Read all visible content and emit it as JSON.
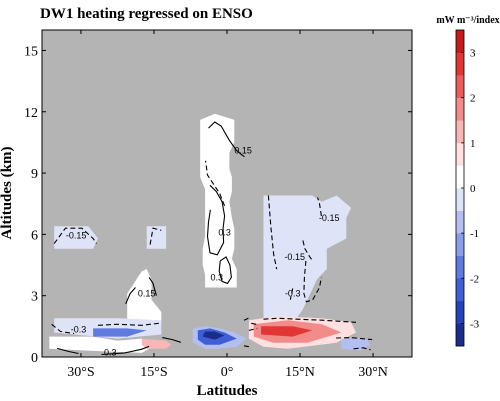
{
  "chart_data": {
    "type": "heatmap",
    "title": "DW1 heating regressed on ENSO",
    "xlabel": "Latitudes",
    "ylabel": "Altitudes (km)",
    "xlim": [
      -38,
      38
    ],
    "ylim": [
      0,
      16
    ],
    "x_ticks": [
      {
        "value": -30,
        "label": "30°S"
      },
      {
        "value": -15,
        "label": "15°S"
      },
      {
        "value": 0,
        "label": "0°"
      },
      {
        "value": 15,
        "label": "15°N"
      },
      {
        "value": 30,
        "label": "30°N"
      }
    ],
    "y_ticks": [
      {
        "value": 0,
        "label": "0"
      },
      {
        "value": 3,
        "label": "3"
      },
      {
        "value": 6,
        "label": "6"
      },
      {
        "value": 9,
        "label": "9"
      },
      {
        "value": 12,
        "label": "12"
      },
      {
        "value": 15,
        "label": "15"
      }
    ],
    "missing_value_color": "#b4b4b4",
    "colorbar": {
      "label": "mW m⁻³/index",
      "levels": [
        -3.5,
        -3,
        -2.5,
        -2,
        -1.5,
        -1,
        -0.5,
        0,
        0.5,
        1,
        1.5,
        2,
        2.5,
        3,
        3.5
      ],
      "colors": [
        "#1a2c8c",
        "#2443b8",
        "#3f5fd4",
        "#5f7be0",
        "#8a9de9",
        "#b3bff1",
        "#dfe3f8",
        "#ffffff",
        "#fde0df",
        "#f8b7b6",
        "#f28c8a",
        "#ec5e5c",
        "#e23634",
        "#c71a1c"
      ],
      "tick_labels": [
        {
          "value": 3,
          "label": "3"
        },
        {
          "value": 2,
          "label": "2"
        },
        {
          "value": 1,
          "label": "1"
        },
        {
          "value": 0,
          "label": "0"
        },
        {
          "value": -1,
          "label": "-1"
        },
        {
          "value": -2,
          "label": "-2"
        },
        {
          "value": -3,
          "label": "-3"
        }
      ]
    },
    "regions": [
      {
        "level": 0.25,
        "points": [
          [
            -4.5,
            3.4
          ],
          [
            -4.5,
            4.0
          ],
          [
            -5.0,
            4.5
          ],
          [
            -5.0,
            5.3
          ],
          [
            -4.5,
            5.9
          ],
          [
            -4.5,
            8.2
          ],
          [
            -5.5,
            8.8
          ],
          [
            -5.5,
            11.6
          ],
          [
            -2.5,
            11.9
          ],
          [
            1.5,
            11.6
          ],
          [
            1.5,
            10.5
          ],
          [
            0.5,
            10.0
          ],
          [
            0.5,
            9.2
          ],
          [
            1.0,
            8.8
          ],
          [
            1.0,
            8.1
          ],
          [
            0.5,
            7.6
          ],
          [
            1.0,
            6.8
          ],
          [
            1.5,
            6.3
          ],
          [
            1.5,
            5.3
          ],
          [
            1.0,
            4.8
          ],
          [
            2.0,
            4.3
          ],
          [
            2.0,
            3.4
          ]
        ]
      },
      {
        "level": -0.25,
        "points": [
          [
            7.5,
            0.8
          ],
          [
            7.5,
            7.9
          ],
          [
            17.5,
            7.9
          ],
          [
            19.5,
            7.6
          ],
          [
            22.5,
            7.9
          ],
          [
            25.5,
            7.3
          ],
          [
            24.5,
            6.8
          ],
          [
            24.5,
            5.8
          ],
          [
            20.5,
            5.3
          ],
          [
            20.5,
            4.3
          ],
          [
            18.5,
            3.8
          ],
          [
            17.5,
            3.3
          ],
          [
            15.5,
            2.3
          ],
          [
            12.5,
            1.3
          ],
          [
            9.5,
            1.0
          ]
        ]
      },
      {
        "level": -0.25,
        "points": [
          [
            -35.5,
            5.3
          ],
          [
            -35.5,
            6.4
          ],
          [
            -28.5,
            6.4
          ],
          [
            -26.5,
            5.8
          ],
          [
            -27.5,
            5.3
          ]
        ]
      },
      {
        "level": -0.25,
        "points": [
          [
            -16.5,
            5.3
          ],
          [
            -16.5,
            6.4
          ],
          [
            -12.5,
            6.4
          ],
          [
            -12.5,
            5.3
          ]
        ]
      },
      {
        "level": 0.25,
        "points": [
          [
            -20.5,
            1.6
          ],
          [
            -20.5,
            3.1
          ],
          [
            -17.5,
            4.2
          ],
          [
            -16.5,
            4.3
          ],
          [
            -15.5,
            3.8
          ],
          [
            -15.5,
            2.8
          ],
          [
            -13.5,
            2.2
          ],
          [
            -13.5,
            1.6
          ]
        ]
      },
      {
        "level": -0.25,
        "points": [
          [
            -35.5,
            1.2
          ],
          [
            -35.5,
            1.9
          ],
          [
            -22.5,
            1.9
          ],
          [
            -13.5,
            1.8
          ],
          [
            -13.5,
            1.1
          ],
          [
            -22.5,
            0.9
          ]
        ]
      },
      {
        "level": 0.25,
        "points": [
          [
            -36.5,
            0.4
          ],
          [
            -36.5,
            1.0
          ],
          [
            -27.5,
            1.0
          ],
          [
            -22.5,
            0.8
          ],
          [
            -17.5,
            0.9
          ],
          [
            -14.5,
            0.6
          ],
          [
            -17.5,
            0.2
          ],
          [
            -27.5,
            0.3
          ]
        ]
      },
      {
        "level": 1.25,
        "points": [
          [
            -17.5,
            0.6
          ],
          [
            -17.5,
            0.9
          ],
          [
            -12.5,
            0.8
          ],
          [
            -11.5,
            0.6
          ],
          [
            -12.5,
            0.4
          ],
          [
            -16.5,
            0.4
          ]
        ]
      },
      {
        "level": -1.75,
        "points": [
          [
            -27.5,
            1.0
          ],
          [
            -27.5,
            1.4
          ],
          [
            -20.5,
            1.4
          ],
          [
            -16.5,
            1.3
          ],
          [
            -20.5,
            1.0
          ]
        ]
      },
      {
        "level": -0.75,
        "points": [
          [
            -7.0,
            0.7
          ],
          [
            -7.0,
            1.4
          ],
          [
            -4.5,
            1.5
          ],
          [
            -1.5,
            1.4
          ],
          [
            1.5,
            1.2
          ],
          [
            4.0,
            0.9
          ],
          [
            2.0,
            0.5
          ],
          [
            -1.5,
            0.4
          ],
          [
            -4.5,
            0.4
          ]
        ]
      },
      {
        "level": -2.25,
        "points": [
          [
            -6.0,
            0.85
          ],
          [
            -6.0,
            1.3
          ],
          [
            -3.5,
            1.4
          ],
          [
            -0.5,
            1.2
          ],
          [
            2.0,
            0.9
          ],
          [
            -1.5,
            0.6
          ],
          [
            -4.5,
            0.6
          ]
        ]
      },
      {
        "level": -3.25,
        "points": [
          [
            -5.0,
            1.0
          ],
          [
            -4.5,
            1.25
          ],
          [
            -2.5,
            1.25
          ],
          [
            -0.5,
            1.05
          ],
          [
            -2.5,
            0.85
          ]
        ]
      },
      {
        "level": 0.75,
        "points": [
          [
            4.5,
            0.9
          ],
          [
            4.5,
            1.8
          ],
          [
            10.5,
            2.0
          ],
          [
            19.5,
            1.9
          ],
          [
            25.5,
            1.7
          ],
          [
            26.5,
            1.2
          ],
          [
            22.5,
            0.7
          ],
          [
            12.5,
            0.4
          ],
          [
            7.5,
            0.5
          ]
        ]
      },
      {
        "level": 1.75,
        "points": [
          [
            5.5,
            1.0
          ],
          [
            5.5,
            1.6
          ],
          [
            12.5,
            1.8
          ],
          [
            19.5,
            1.6
          ],
          [
            23.5,
            1.2
          ],
          [
            16.5,
            0.7
          ],
          [
            9.5,
            0.7
          ]
        ]
      },
      {
        "level": 2.75,
        "points": [
          [
            7.0,
            1.1
          ],
          [
            7.0,
            1.5
          ],
          [
            13.5,
            1.5
          ],
          [
            17.5,
            1.3
          ],
          [
            13.5,
            1.0
          ]
        ]
      },
      {
        "level": -0.75,
        "points": [
          [
            23.5,
            0.4
          ],
          [
            23.5,
            0.9
          ],
          [
            28.5,
            0.9
          ],
          [
            29.5,
            0.6
          ],
          [
            27.5,
            0.3
          ]
        ]
      }
    ],
    "contours": [
      {
        "dashed": false,
        "points": [
          [
            -3.8,
            11.2
          ],
          [
            -2.5,
            11.5
          ],
          [
            -1.2,
            11.3
          ],
          [
            0.5,
            10.6
          ],
          [
            2.0,
            10.1
          ],
          [
            3.0,
            9.9
          ],
          [
            3.6,
            9.8
          ]
        ]
      },
      {
        "dashed": false,
        "points": [
          [
            -3.5,
            8.4
          ],
          [
            -2.2,
            8.1
          ],
          [
            -1.0,
            7.6
          ],
          [
            -0.5,
            6.9
          ],
          [
            -0.8,
            6.3
          ],
          [
            -0.7,
            5.6
          ],
          [
            -2.0,
            5.0
          ],
          [
            -3.5,
            5.1
          ],
          [
            -4.0,
            5.9
          ],
          [
            -3.8,
            6.6
          ],
          [
            -3.4,
            7.2
          ]
        ]
      },
      {
        "dashed": false,
        "points": [
          [
            -1.4,
            4.7
          ],
          [
            -0.2,
            4.9
          ],
          [
            0.6,
            4.5
          ],
          [
            0.9,
            3.9
          ],
          [
            0.1,
            3.6
          ],
          [
            -1.0,
            3.7
          ],
          [
            -1.6,
            4.2
          ],
          [
            -1.4,
            4.7
          ]
        ]
      },
      {
        "dashed": false,
        "points": [
          [
            -20.8,
            2.6
          ],
          [
            -19.9,
            3.1
          ],
          [
            -18.8,
            3.4
          ]
        ]
      },
      {
        "dashed": false,
        "points": [
          [
            -14.5,
            3.0
          ],
          [
            -15.2,
            3.6
          ],
          [
            -16.0,
            3.9
          ]
        ]
      },
      {
        "dashed": false,
        "points": [
          [
            -34.9,
            0.42
          ],
          [
            -32.5,
            0.27
          ],
          [
            -30.5,
            0.17
          ]
        ]
      },
      {
        "dashed": false,
        "points": [
          [
            -25.8,
            0.12
          ],
          [
            -21.0,
            0.2
          ],
          [
            -17.5,
            0.38
          ],
          [
            -16.0,
            0.52
          ]
        ]
      },
      {
        "dashed": false,
        "points": [
          [
            -13.3,
            0.95
          ],
          [
            -11.2,
            0.85
          ],
          [
            -9.5,
            0.72
          ]
        ]
      },
      {
        "dashed": true,
        "points": [
          [
            -0.5,
            7.4
          ],
          [
            -1.5,
            8.0
          ],
          [
            -4.0,
            8.9
          ],
          [
            -4.4,
            9.6
          ]
        ]
      },
      {
        "dashed": true,
        "points": [
          [
            -35.5,
            5.55
          ],
          [
            -33.2,
            6.3
          ],
          [
            -29.8,
            6.3
          ],
          [
            -27.5,
            5.8
          ],
          [
            -26.8,
            5.55
          ]
        ]
      },
      {
        "dashed": true,
        "points": [
          [
            -15.8,
            5.5
          ],
          [
            -15.2,
            6.3
          ],
          [
            -13.5,
            6.2
          ]
        ]
      },
      {
        "dashed": true,
        "points": [
          [
            8.5,
            7.9
          ],
          [
            9.0,
            6.4
          ],
          [
            9.6,
            5.0
          ],
          [
            10.2,
            4.3
          ]
        ]
      },
      {
        "dashed": true,
        "points": [
          [
            19.4,
            6.9
          ],
          [
            19.0,
            7.5
          ],
          [
            18.6,
            7.8
          ]
        ]
      },
      {
        "dashed": true,
        "points": [
          [
            15.6,
            5.7
          ],
          [
            16.0,
            5.3
          ],
          [
            17.0,
            4.9
          ],
          [
            17.6,
            4.7
          ]
        ]
      },
      {
        "dashed": true,
        "points": [
          [
            16.2,
            4.7
          ],
          [
            15.9,
            3.9
          ],
          [
            15.8,
            3.1
          ],
          [
            16.3,
            2.7
          ],
          [
            17.6,
            2.8
          ],
          [
            19.0,
            3.4
          ],
          [
            19.4,
            3.9
          ]
        ]
      },
      {
        "dashed": true,
        "points": [
          [
            13.5,
            3.35
          ],
          [
            13.0,
            2.8
          ]
        ]
      },
      {
        "dashed": true,
        "points": [
          [
            -36.0,
            1.6
          ],
          [
            -34.2,
            1.25
          ],
          [
            -31.4,
            1.15
          ]
        ]
      },
      {
        "dashed": true,
        "points": [
          [
            -26.5,
            1.55
          ],
          [
            -22.5,
            1.6
          ],
          [
            -17.5,
            1.55
          ],
          [
            -14.0,
            1.65
          ]
        ]
      },
      {
        "dashed": true,
        "points": [
          [
            3.5,
            0.55
          ],
          [
            4.6,
            0.5
          ]
        ]
      },
      {
        "dashed": true,
        "points": [
          [
            3.5,
            1.8
          ],
          [
            4.4,
            1.9
          ]
        ]
      },
      {
        "dashed": true,
        "points": [
          [
            4.5,
            1.3
          ],
          [
            6.2,
            1.4
          ]
        ]
      },
      {
        "dashed": true,
        "points": [
          [
            7.5,
            1.85
          ],
          [
            10.5,
            1.9
          ],
          [
            14.5,
            1.85
          ],
          [
            19.5,
            1.8
          ],
          [
            26.5,
            1.7
          ]
        ]
      },
      {
        "dashed": true,
        "points": [
          [
            26.0,
            0.4
          ],
          [
            28.0,
            0.45
          ],
          [
            29.5,
            0.35
          ]
        ]
      },
      {
        "dashed": true,
        "points": [
          [
            22.4,
            0.93
          ],
          [
            25.6,
            0.95
          ],
          [
            29.8,
            0.85
          ]
        ]
      },
      {
        "dashed": true,
        "points": [
          [
            6.0,
            1.6
          ],
          [
            5.0,
            1.65
          ]
        ]
      }
    ],
    "contour_labels": [
      {
        "x": 3.3,
        "y": 10.1,
        "text": "0.15"
      },
      {
        "x": -0.5,
        "y": 6.1,
        "text": "0.3"
      },
      {
        "x": -2.1,
        "y": 3.9,
        "text": "0.3"
      },
      {
        "x": -16.5,
        "y": 3.1,
        "text": "0.15"
      },
      {
        "x": -31.0,
        "y": 5.95,
        "text": "-0.15"
      },
      {
        "x": 21.0,
        "y": 6.8,
        "text": "-0.15"
      },
      {
        "x": 13.9,
        "y": 4.9,
        "text": "-0.15"
      },
      {
        "x": 13.5,
        "y": 3.1,
        "text": "-0.3"
      },
      {
        "x": -30.5,
        "y": 1.35,
        "text": "-0.3"
      },
      {
        "x": -24.0,
        "y": 0.22,
        "text": "0.3"
      }
    ]
  }
}
